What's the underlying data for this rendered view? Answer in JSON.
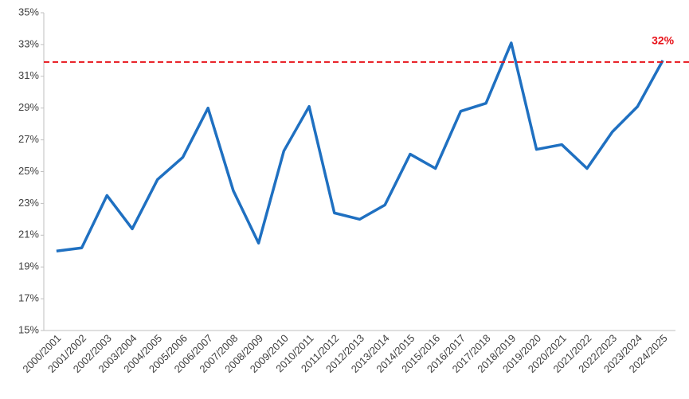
{
  "chart_data": {
    "type": "line",
    "categories": [
      "2000/2001",
      "2001/2002",
      "2002/2003",
      "2003/2004",
      "2004/2005",
      "2005/2006",
      "2006/2007",
      "2007/2008",
      "2008/2009",
      "2009/2010",
      "2010/2011",
      "2011/2012",
      "2012/2013",
      "2013/2014",
      "2014/2015",
      "2015/2016",
      "2016/2017",
      "2017/2018",
      "2018/2019",
      "2019/2020",
      "2020/2021",
      "2021/2022",
      "2022/2023",
      "2023/2024",
      "2024/2025"
    ],
    "values": [
      20.0,
      20.2,
      23.5,
      21.4,
      24.5,
      25.9,
      29.0,
      23.8,
      20.5,
      26.3,
      29.1,
      22.4,
      22.0,
      22.9,
      26.1,
      25.2,
      28.8,
      29.3,
      33.1,
      26.4,
      26.7,
      25.2,
      27.5,
      29.1,
      32.0
    ],
    "color": "#1f70c1",
    "ylim": [
      15,
      35
    ],
    "yticks": [
      {
        "value": 15,
        "label": "15%"
      },
      {
        "value": 17,
        "label": "17%"
      },
      {
        "value": 19,
        "label": "19%"
      },
      {
        "value": 21,
        "label": "21%"
      },
      {
        "value": 23,
        "label": "23%"
      },
      {
        "value": 25,
        "label": "25%"
      },
      {
        "value": 27,
        "label": "27%"
      },
      {
        "value": 29,
        "label": "29%"
      },
      {
        "value": 31,
        "label": "31%"
      },
      {
        "value": 33,
        "label": "33%"
      },
      {
        "value": 35,
        "label": "35%"
      }
    ],
    "grid": false,
    "reference_line": {
      "value": 31.9,
      "label": "32%",
      "color": "#e8141b"
    }
  }
}
